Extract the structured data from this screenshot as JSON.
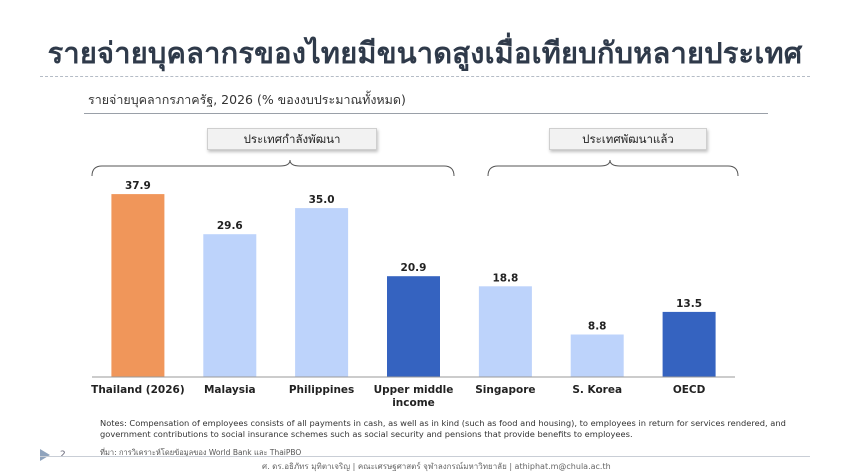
{
  "title": "รายจ่ายบุคลากรของไทยมีขนาดสูงเมื่อเทียบกับหลายประเทศ",
  "subtitle": "รายจ่ายบุคลากรภาครัฐ, 2026 (% ของงบประมาณทั้งหมด)",
  "groups": {
    "developing": "ประเทศกำลังพัฒนา",
    "developed": "ประเทศพัฒนาแล้ว"
  },
  "colors": {
    "thailand": "#F0965A",
    "light_blue": "#BDD3FB",
    "dark_blue": "#3563C0"
  },
  "chart_data": {
    "type": "bar",
    "title": "รายจ่ายบุคลากรภาครัฐ, 2026 (% ของงบประมาณทั้งหมด)",
    "categories": [
      "Thailand (2026)",
      "Malaysia",
      "Philippines",
      "Upper middle income",
      "Singapore",
      "S. Korea",
      "OECD"
    ],
    "category_lines": [
      [
        "Thailand (2026)"
      ],
      [
        "Malaysia"
      ],
      [
        "Philippines"
      ],
      [
        "Upper middle",
        "income"
      ],
      [
        "Singapore"
      ],
      [
        "S. Korea"
      ],
      [
        "OECD"
      ]
    ],
    "values": [
      37.9,
      29.6,
      35.0,
      20.9,
      18.8,
      8.8,
      13.5
    ],
    "value_labels": [
      "37.9",
      "29.6",
      "35.0",
      "20.9",
      "18.8",
      "8.8",
      "13.5"
    ],
    "bar_colors": [
      "#F0965A",
      "#BDD3FB",
      "#BDD3FB",
      "#3563C0",
      "#BDD3FB",
      "#BDD3FB",
      "#3563C0"
    ],
    "ylim": [
      0,
      40
    ],
    "grid": false,
    "legend": "none"
  },
  "notes": "Notes: Compensation of employees consists of all payments in cash, as well as in kind (such as food and housing), to employees in return for services rendered, and government contributions to social insurance schemes such as social security and pensions that provide benefits to employees.",
  "source": "ที่มา: การวิเคราะห์โดยข้อมูลของ World Bank และ ThaiPBO",
  "page_number": "2",
  "credit": "ศ. ดร.อธิภัทร มุทิตาเจริญ | คณะเศรษฐศาสตร์ จุฬาลงกรณ์มหาวิทยาลัย | athiphat.m@chula.ac.th"
}
